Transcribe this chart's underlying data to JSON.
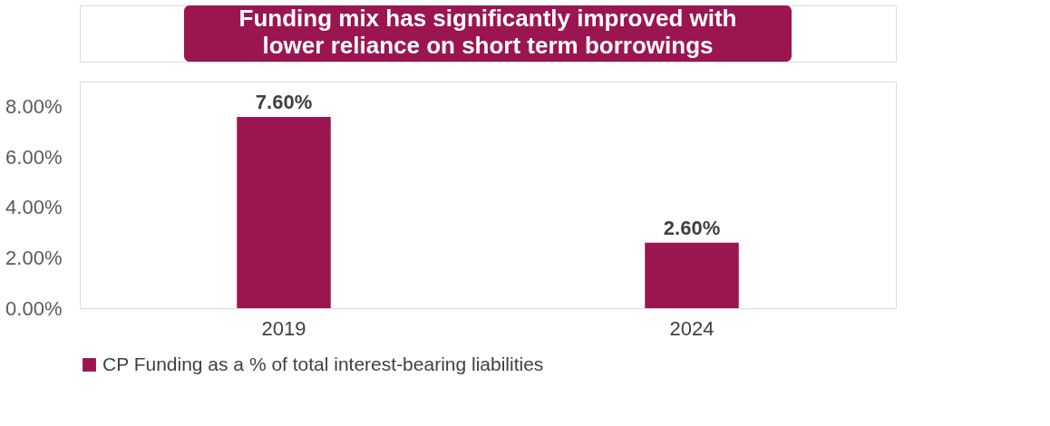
{
  "chart_data": {
    "type": "bar",
    "title": "Funding mix has significantly improved with\nlower reliance on short term borrowings",
    "categories": [
      "2019",
      "2024"
    ],
    "series": [
      {
        "name": "CP Funding as a % of total interest-bearing liabilities",
        "color": "#9b1550",
        "values": [
          7.6,
          2.6
        ]
      }
    ],
    "value_labels": [
      "7.60%",
      "2.60%"
    ],
    "ylim": [
      0,
      9
    ],
    "yticks": [
      {
        "value": 0,
        "label": "0.00%"
      },
      {
        "value": 2,
        "label": "2.00%"
      },
      {
        "value": 4,
        "label": "4.00%"
      },
      {
        "value": 6,
        "label": "6.00%"
      },
      {
        "value": 8,
        "label": "8.00%"
      }
    ],
    "grid": false,
    "legend": "bottom"
  }
}
